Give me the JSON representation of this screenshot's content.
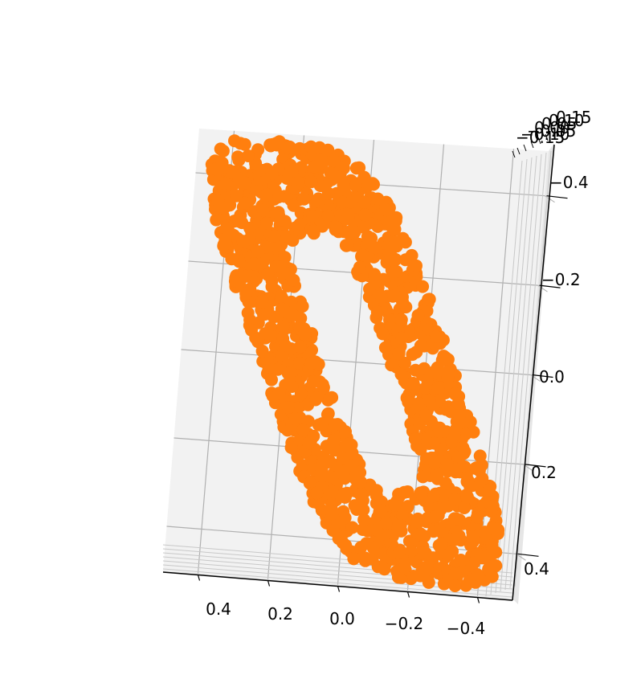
{
  "chart_data": {
    "type": "scatter",
    "projection": "3d",
    "title": "",
    "xlabel": "",
    "ylabel": "",
    "zlabel": "",
    "grid": true,
    "legend": "none",
    "marker_color": "#ff7f0e",
    "pane_color": "#f2f2f2",
    "grid_color": "#b0b0b0",
    "x_ticks": [
      "0.4",
      "0.2",
      "0.0",
      "−0.2",
      "−0.4"
    ],
    "y_ticks": [
      "−0.4",
      "−0.2",
      "0.0",
      "0.2",
      "0.4"
    ],
    "z_ticks": [
      "0.15",
      "0.10",
      "0.05",
      "0.00",
      "−0.05",
      "−0.10",
      "−0.15"
    ],
    "xlim": [
      -0.5,
      0.5
    ],
    "ylim": [
      -0.5,
      0.5
    ],
    "zlim": [
      -0.15,
      0.15
    ],
    "shape": "digit zero (ring) made of square blocks",
    "series": [
      {
        "label": "",
        "point_count": 1400,
        "ring_center": [
          0.0,
          0.0
        ],
        "outer_half_extent": [
          0.28,
          0.48
        ],
        "inner_half_extent": [
          0.1,
          0.28
        ],
        "z_spread": [
          -0.1,
          0.1
        ]
      }
    ]
  }
}
